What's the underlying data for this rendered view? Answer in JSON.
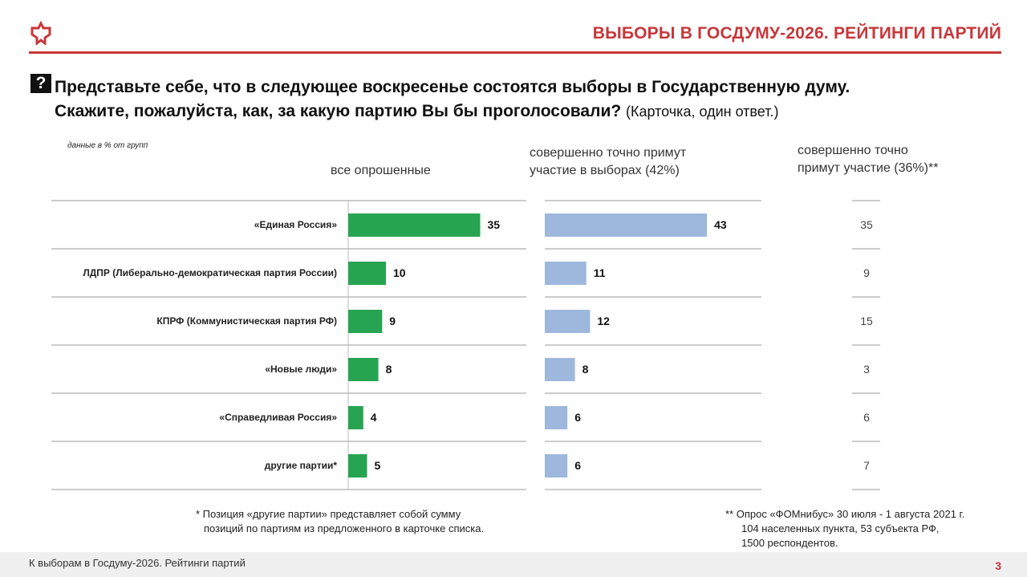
{
  "header": {
    "title": "ВЫБОРЫ В ГОСДУМУ-2026. РЕЙТИНГИ ПАРТИЙ",
    "accent_color": "#c8373a"
  },
  "question": {
    "icon": "?",
    "line1": "Представьте себе, что в следующее воскресенье состоятся выборы в Государственную думу.",
    "line2": "Скажите, пожалуйста, как, за какую партию Вы бы проголосовали?",
    "note": "(Карточка, один ответ.)"
  },
  "data_note": "данные в % от групп",
  "column_headers": {
    "all_line1": "все опрошенные",
    "likely_line1": "совершенно точно примут",
    "likely_line2": "участие в выборах  (42%)",
    "certain_line1": "совершенно точно",
    "certain_line2": "примут участие (36%)**"
  },
  "chart_data": {
    "type": "bar",
    "orientation": "horizontal",
    "categories": [
      "«Единая Россия»",
      "ЛДПР (Либерально-демократическая партия России)",
      "КПРФ (Коммунистическая партия РФ)",
      "«Новые люди»",
      "«Справедливая Россия»",
      "другие партии*"
    ],
    "series": [
      {
        "name": "все опрошенные",
        "values": [
          35,
          10,
          9,
          8,
          4,
          5
        ],
        "color": "#27a451"
      },
      {
        "name": "совершенно точно примут участие в выборах  (42%)",
        "values": [
          43,
          11,
          12,
          8,
          6,
          6
        ],
        "color": "#9db8dc"
      },
      {
        "name": "совершенно точно примут участие (36%)**",
        "values": [
          35,
          9,
          15,
          3,
          6,
          7
        ],
        "display": "text"
      }
    ],
    "unit": "%",
    "xlim": [
      0,
      45
    ]
  },
  "footnotes": {
    "left_line1": "* Позиция «другие партии» представляет собой сумму",
    "left_line2": "позиций по партиям из предложенного в карточке списка.",
    "right_line1": "** Опрос «ФОМнибус» 30 июля - 1 августа 2021 г.",
    "right_line2": "104 населенных пункта, 53 субъекта РФ,",
    "right_line3": "1500 респондентов."
  },
  "footer": {
    "text": "К выборам в Госдуму-2026. Рейтинги партий",
    "page": "3"
  }
}
